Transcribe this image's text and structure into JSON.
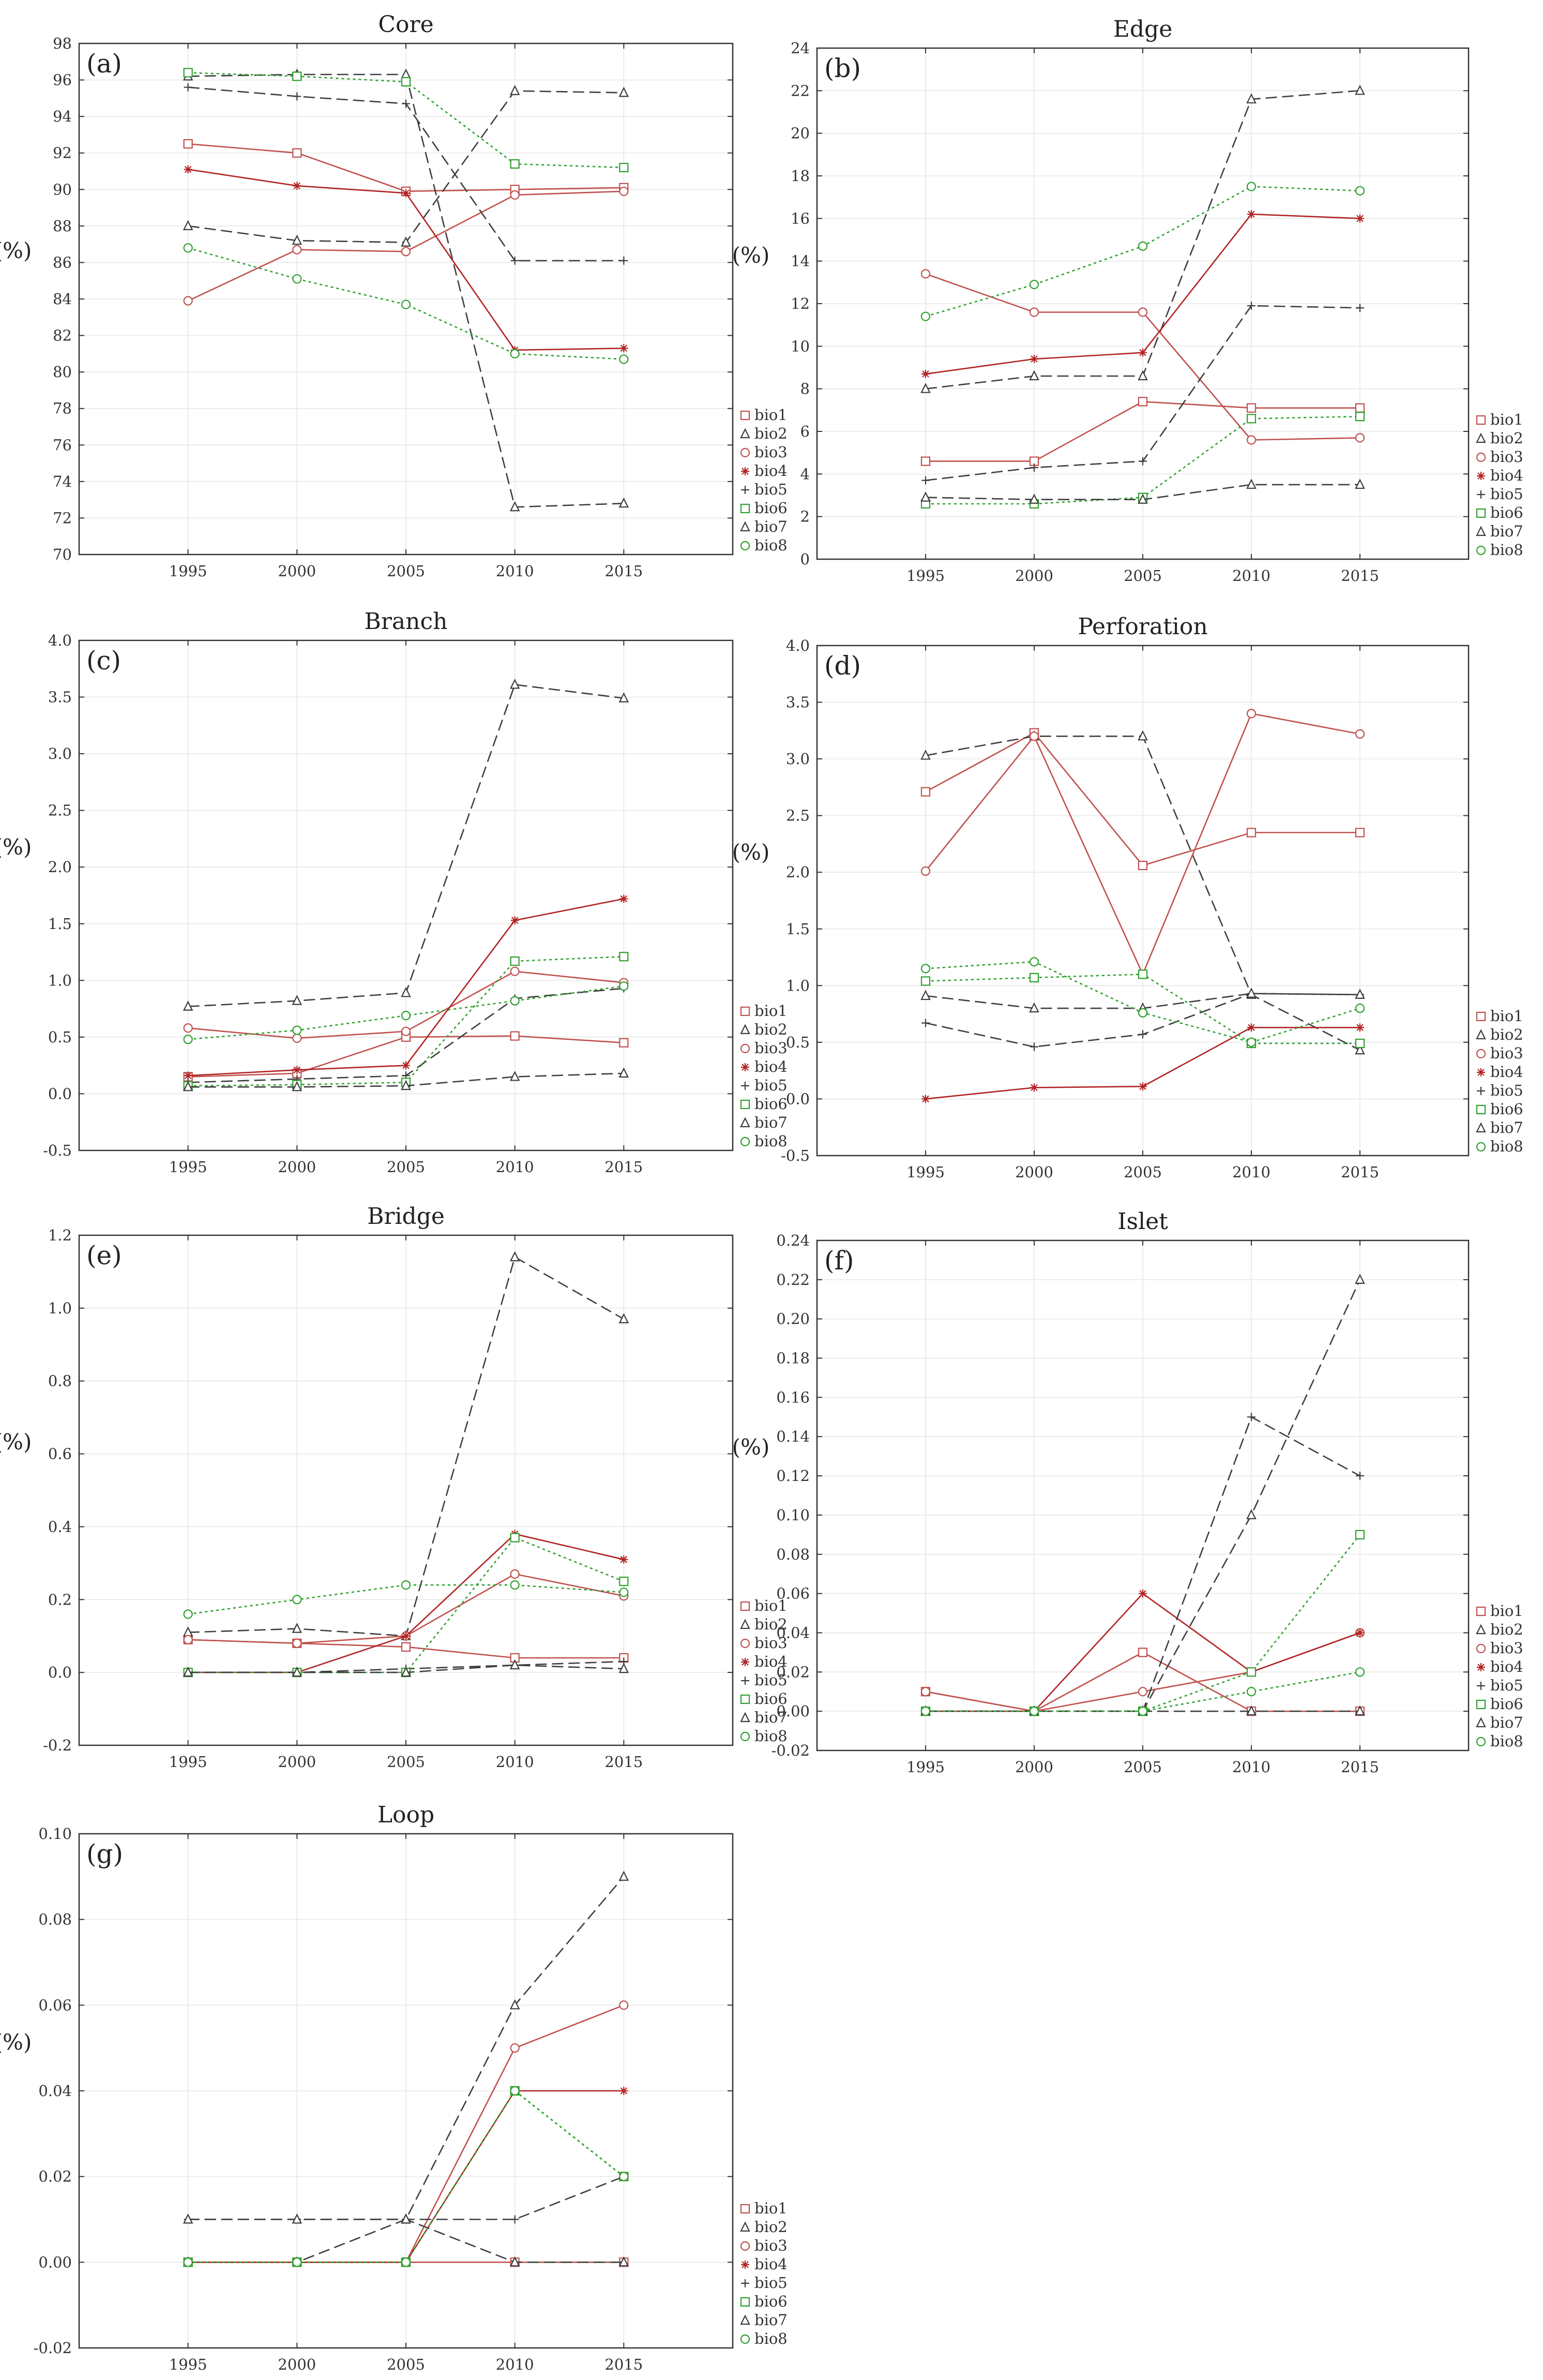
{
  "figure": {
    "series_names": [
      "bio1",
      "bio2",
      "bio3",
      "bio4",
      "bio5",
      "bio6",
      "bio7",
      "bio8"
    ],
    "series_styles": [
      {
        "name": "bio1",
        "color": "#c0504d",
        "dash": "solid",
        "marker": "square"
      },
      {
        "name": "bio2",
        "color": "#3d3d3d",
        "dash": "dashed",
        "marker": "triangle"
      },
      {
        "name": "bio3",
        "color": "#c0504d",
        "dash": "solid",
        "marker": "circle"
      },
      {
        "name": "bio4",
        "color": "#b22222",
        "dash": "solid",
        "marker": "star"
      },
      {
        "name": "bio5",
        "color": "#3d3d3d",
        "dash": "dashed",
        "marker": "plus"
      },
      {
        "name": "bio6",
        "color": "#2ca02c",
        "dash": "dotted",
        "marker": "square"
      },
      {
        "name": "bio7",
        "color": "#3d3d3d",
        "dash": "dashed",
        "marker": "triangle"
      },
      {
        "name": "bio8",
        "color": "#2ca02c",
        "dash": "dotted",
        "marker": "circle"
      }
    ]
  },
  "chart_data": [
    {
      "type": "line",
      "title": "Core",
      "panel_label": "(a)",
      "ylabel": "(%)",
      "x": [
        1995,
        2000,
        2005,
        2010,
        2015
      ],
      "ylim": [
        70,
        98
      ],
      "yticks": [
        "70",
        "72",
        "74",
        "76",
        "78",
        "80",
        "82",
        "84",
        "86",
        "88",
        "90",
        "92",
        "94",
        "96",
        "98"
      ],
      "series": [
        {
          "name": "bio1",
          "values": [
            92.5,
            92.0,
            89.9,
            90.0,
            90.1
          ]
        },
        {
          "name": "bio2",
          "values": [
            96.2,
            96.3,
            96.3,
            72.6,
            72.8
          ]
        },
        {
          "name": "bio3",
          "values": [
            83.9,
            86.7,
            86.6,
            89.7,
            89.9
          ]
        },
        {
          "name": "bio4",
          "values": [
            91.1,
            90.2,
            89.8,
            81.2,
            81.3
          ]
        },
        {
          "name": "bio5",
          "values": [
            95.6,
            95.1,
            94.7,
            86.1,
            86.1
          ]
        },
        {
          "name": "bio6",
          "values": [
            96.4,
            96.2,
            95.9,
            91.4,
            91.2
          ]
        },
        {
          "name": "bio7",
          "values": [
            88.0,
            87.2,
            87.1,
            95.4,
            95.3
          ]
        },
        {
          "name": "bio8",
          "values": [
            86.8,
            85.1,
            83.7,
            81.0,
            80.7
          ]
        }
      ]
    },
    {
      "type": "line",
      "title": "Edge",
      "panel_label": "(b)",
      "ylabel": "(%)",
      "x": [
        1995,
        2000,
        2005,
        2010,
        2015
      ],
      "ylim": [
        0,
        24
      ],
      "yticks": [
        "0",
        "2",
        "4",
        "6",
        "8",
        "10",
        "12",
        "14",
        "16",
        "18",
        "20",
        "22",
        "24"
      ],
      "series": [
        {
          "name": "bio1",
          "values": [
            4.6,
            4.6,
            7.4,
            7.1,
            7.1
          ]
        },
        {
          "name": "bio2",
          "values": [
            8.0,
            8.6,
            8.6,
            21.6,
            22.0
          ]
        },
        {
          "name": "bio3",
          "values": [
            13.4,
            11.6,
            11.6,
            5.6,
            5.7
          ]
        },
        {
          "name": "bio4",
          "values": [
            8.7,
            9.4,
            9.7,
            16.2,
            16.0
          ]
        },
        {
          "name": "bio5",
          "values": [
            3.7,
            4.3,
            4.6,
            11.9,
            11.8
          ]
        },
        {
          "name": "bio6",
          "values": [
            2.6,
            2.6,
            2.9,
            6.6,
            6.7
          ]
        },
        {
          "name": "bio7",
          "values": [
            2.9,
            2.8,
            2.8,
            3.5,
            3.5
          ]
        },
        {
          "name": "bio8",
          "values": [
            11.4,
            12.9,
            14.7,
            17.5,
            17.3
          ]
        }
      ]
    },
    {
      "type": "line",
      "title": "Branch",
      "panel_label": "(c)",
      "ylabel": "(%)",
      "x": [
        1995,
        2000,
        2005,
        2010,
        2015
      ],
      "ylim": [
        -0.5,
        4.0
      ],
      "yticks": [
        "-0.5",
        "0.0",
        "0.5",
        "1.0",
        "1.5",
        "2.0",
        "2.5",
        "3.0",
        "3.5",
        "4.0"
      ],
      "series": [
        {
          "name": "bio1",
          "values": [
            0.15,
            0.18,
            0.5,
            0.51,
            0.45
          ]
        },
        {
          "name": "bio2",
          "values": [
            0.77,
            0.82,
            0.89,
            3.61,
            3.49
          ]
        },
        {
          "name": "bio3",
          "values": [
            0.58,
            0.49,
            0.55,
            1.08,
            0.98
          ]
        },
        {
          "name": "bio4",
          "values": [
            0.16,
            0.21,
            0.25,
            1.53,
            1.72
          ]
        },
        {
          "name": "bio5",
          "values": [
            0.1,
            0.13,
            0.16,
            0.84,
            0.93
          ]
        },
        {
          "name": "bio6",
          "values": [
            0.07,
            0.08,
            0.1,
            1.17,
            1.21
          ]
        },
        {
          "name": "bio7",
          "values": [
            0.06,
            0.06,
            0.07,
            0.15,
            0.18
          ]
        },
        {
          "name": "bio8",
          "values": [
            0.48,
            0.56,
            0.69,
            0.82,
            0.95
          ]
        }
      ]
    },
    {
      "type": "line",
      "title": "Perforation",
      "panel_label": "(d)",
      "ylabel": "(%)",
      "x": [
        1995,
        2000,
        2005,
        2010,
        2015
      ],
      "ylim": [
        -0.5,
        4.0
      ],
      "yticks": [
        "-0.5",
        "0.0",
        "0.5",
        "1.0",
        "1.5",
        "2.0",
        "2.5",
        "3.0",
        "3.5",
        "4.0"
      ],
      "series": [
        {
          "name": "bio1",
          "values": [
            2.71,
            3.23,
            2.06,
            2.35,
            2.35
          ]
        },
        {
          "name": "bio2",
          "values": [
            3.03,
            3.2,
            3.2,
            0.92,
            0.43
          ]
        },
        {
          "name": "bio3",
          "values": [
            2.01,
            3.2,
            1.1,
            3.4,
            3.22
          ]
        },
        {
          "name": "bio4",
          "values": [
            0.0,
            0.1,
            0.11,
            0.63,
            0.63
          ]
        },
        {
          "name": "bio5",
          "values": [
            0.67,
            0.46,
            0.57,
            0.93,
            0.92
          ]
        },
        {
          "name": "bio6",
          "values": [
            1.04,
            1.07,
            1.1,
            0.49,
            0.49
          ]
        },
        {
          "name": "bio7",
          "values": [
            0.91,
            0.8,
            0.8,
            0.93,
            0.92
          ]
        },
        {
          "name": "bio8",
          "values": [
            1.15,
            1.21,
            0.76,
            0.5,
            0.8
          ]
        }
      ]
    },
    {
      "type": "line",
      "title": "Bridge",
      "panel_label": "(e)",
      "ylabel": "(%)",
      "x": [
        1995,
        2000,
        2005,
        2010,
        2015
      ],
      "ylim": [
        -0.2,
        1.2
      ],
      "yticks": [
        "-0.2",
        "0.0",
        "0.2",
        "0.4",
        "0.6",
        "0.8",
        "1.0",
        "1.2"
      ],
      "series": [
        {
          "name": "bio1",
          "values": [
            0.09,
            0.08,
            0.07,
            0.04,
            0.04
          ]
        },
        {
          "name": "bio2",
          "values": [
            0.11,
            0.12,
            0.1,
            1.14,
            0.97
          ]
        },
        {
          "name": "bio3",
          "values": [
            0.09,
            0.08,
            0.1,
            0.27,
            0.21
          ]
        },
        {
          "name": "bio4",
          "values": [
            0.0,
            0.0,
            0.1,
            0.38,
            0.31
          ]
        },
        {
          "name": "bio5",
          "values": [
            0.0,
            0.0,
            0.01,
            0.02,
            0.03
          ]
        },
        {
          "name": "bio6",
          "values": [
            0.0,
            0.0,
            0.0,
            0.37,
            0.25
          ]
        },
        {
          "name": "bio7",
          "values": [
            0.0,
            0.0,
            0.0,
            0.02,
            0.01
          ]
        },
        {
          "name": "bio8",
          "values": [
            0.16,
            0.2,
            0.24,
            0.24,
            0.22
          ]
        }
      ]
    },
    {
      "type": "line",
      "title": "Islet",
      "panel_label": "(f)",
      "ylabel": "(%)",
      "x": [
        1995,
        2000,
        2005,
        2010,
        2015
      ],
      "ylim": [
        -0.02,
        0.24
      ],
      "yticks": [
        "-0.02",
        "0.00",
        "0.02",
        "0.04",
        "0.06",
        "0.08",
        "0.10",
        "0.12",
        "0.14",
        "0.16",
        "0.18",
        "0.20",
        "0.22",
        "0.24"
      ],
      "series": [
        {
          "name": "bio1",
          "values": [
            0.01,
            0.0,
            0.03,
            0.0,
            0.0
          ]
        },
        {
          "name": "bio2",
          "values": [
            0.0,
            0.0,
            0.0,
            0.1,
            0.22
          ]
        },
        {
          "name": "bio3",
          "values": [
            0.01,
            0.0,
            0.01,
            0.02,
            0.04
          ]
        },
        {
          "name": "bio4",
          "values": [
            0.0,
            0.0,
            0.06,
            0.02,
            0.04
          ]
        },
        {
          "name": "bio5",
          "values": [
            0.0,
            0.0,
            0.0,
            0.15,
            0.12
          ]
        },
        {
          "name": "bio6",
          "values": [
            0.0,
            0.0,
            0.0,
            0.02,
            0.09
          ]
        },
        {
          "name": "bio7",
          "values": [
            0.0,
            0.0,
            0.0,
            0.0,
            0.0
          ]
        },
        {
          "name": "bio8",
          "values": [
            0.0,
            0.0,
            0.0,
            0.01,
            0.02
          ]
        }
      ]
    },
    {
      "type": "line",
      "title": "Loop",
      "panel_label": "(g)",
      "ylabel": "(%)",
      "x": [
        1995,
        2000,
        2005,
        2010,
        2015
      ],
      "ylim": [
        -0.02,
        0.1
      ],
      "yticks": [
        "-0.02",
        "0.00",
        "0.02",
        "0.04",
        "0.06",
        "0.08",
        "0.10"
      ],
      "series": [
        {
          "name": "bio1",
          "values": [
            0.0,
            0.0,
            0.0,
            0.0,
            0.0
          ]
        },
        {
          "name": "bio2",
          "values": [
            0.0,
            0.0,
            0.01,
            0.06,
            0.09
          ]
        },
        {
          "name": "bio3",
          "values": [
            0.0,
            0.0,
            0.0,
            0.05,
            0.06
          ]
        },
        {
          "name": "bio4",
          "values": [
            0.0,
            0.0,
            0.0,
            0.04,
            0.04
          ]
        },
        {
          "name": "bio5",
          "values": [
            0.01,
            0.01,
            0.01,
            0.01,
            0.02
          ]
        },
        {
          "name": "bio6",
          "values": [
            0.0,
            0.0,
            0.0,
            0.04,
            0.02
          ]
        },
        {
          "name": "bio7",
          "values": [
            0.01,
            0.01,
            0.01,
            0.0,
            0.0
          ]
        },
        {
          "name": "bio8",
          "values": [
            0.0,
            0.0,
            0.0,
            0.04,
            0.02
          ]
        }
      ]
    }
  ]
}
